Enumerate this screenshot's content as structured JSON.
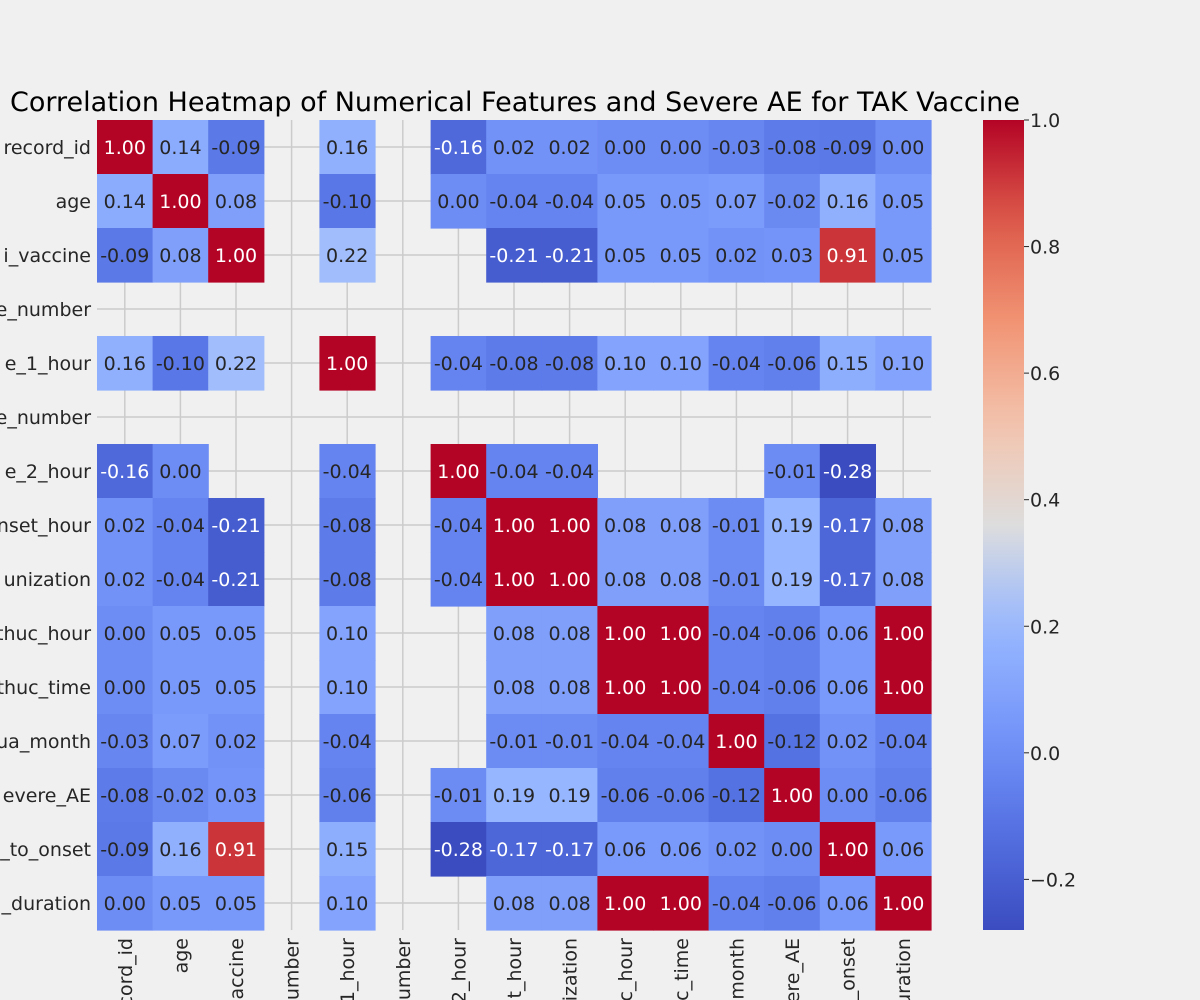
{
  "chart_data": {
    "type": "heatmap",
    "title": "Correlation Heatmap of Numerical Features and Severe AE for TAK Vaccine",
    "row_labels": [
      "record_id",
      "age",
      "i_vaccine",
      "e_number",
      "e_1_hour",
      "e_number",
      "e_2_hour",
      "nset_hour",
      "unization",
      "thuc_hour",
      "thuc_time",
      "ua_month",
      "evere_AE",
      "_to_onset",
      "_duration"
    ],
    "col_labels": [
      "cord_id",
      "age",
      "accine",
      "umber",
      "1_hour",
      "umber",
      "2_hour",
      "t_hour",
      "ization",
      "c_hour",
      "c_time",
      "month",
      "ere_AE",
      "_onset",
      "uration"
    ],
    "values": [
      [
        1.0,
        0.14,
        -0.09,
        null,
        0.16,
        null,
        -0.16,
        0.02,
        0.02,
        -0.0,
        -0.0,
        -0.03,
        -0.08,
        -0.09,
        -0.0
      ],
      [
        0.14,
        1.0,
        0.08,
        null,
        -0.1,
        null,
        0.0,
        -0.04,
        -0.04,
        0.05,
        0.05,
        0.07,
        -0.02,
        0.16,
        0.05
      ],
      [
        -0.09,
        0.08,
        1.0,
        null,
        0.22,
        null,
        null,
        -0.21,
        -0.21,
        0.05,
        0.05,
        0.02,
        0.03,
        0.91,
        0.05
      ],
      [
        null,
        null,
        null,
        null,
        null,
        null,
        null,
        null,
        null,
        null,
        null,
        null,
        null,
        null,
        null
      ],
      [
        0.16,
        -0.1,
        0.22,
        null,
        1.0,
        null,
        -0.04,
        -0.08,
        -0.08,
        0.1,
        0.1,
        -0.04,
        -0.06,
        0.15,
        0.1
      ],
      [
        null,
        null,
        null,
        null,
        null,
        null,
        null,
        null,
        null,
        null,
        null,
        null,
        null,
        null,
        null
      ],
      [
        -0.16,
        0.0,
        null,
        null,
        -0.04,
        null,
        1.0,
        -0.04,
        -0.04,
        null,
        null,
        null,
        -0.01,
        -0.28,
        null
      ],
      [
        0.02,
        -0.04,
        -0.21,
        null,
        -0.08,
        null,
        -0.04,
        1.0,
        1.0,
        0.08,
        0.08,
        -0.01,
        0.19,
        -0.17,
        0.08
      ],
      [
        0.02,
        -0.04,
        -0.21,
        null,
        -0.08,
        null,
        -0.04,
        1.0,
        1.0,
        0.08,
        0.08,
        -0.01,
        0.19,
        -0.17,
        0.08
      ],
      [
        -0.0,
        0.05,
        0.05,
        null,
        0.1,
        null,
        null,
        0.08,
        0.08,
        1.0,
        1.0,
        -0.04,
        -0.06,
        0.06,
        1.0
      ],
      [
        -0.0,
        0.05,
        0.05,
        null,
        0.1,
        null,
        null,
        0.08,
        0.08,
        1.0,
        1.0,
        -0.04,
        -0.06,
        0.06,
        1.0
      ],
      [
        -0.03,
        0.07,
        0.02,
        null,
        -0.04,
        null,
        null,
        -0.01,
        -0.01,
        -0.04,
        -0.04,
        1.0,
        -0.12,
        0.02,
        -0.04
      ],
      [
        -0.08,
        -0.02,
        0.03,
        null,
        -0.06,
        null,
        -0.01,
        0.19,
        0.19,
        -0.06,
        -0.06,
        -0.12,
        1.0,
        -0.0,
        -0.06
      ],
      [
        -0.09,
        0.16,
        0.91,
        null,
        0.15,
        null,
        -0.28,
        -0.17,
        -0.17,
        0.06,
        0.06,
        0.02,
        -0.0,
        1.0,
        0.06
      ],
      [
        -0.0,
        0.05,
        0.05,
        null,
        0.1,
        null,
        null,
        0.08,
        0.08,
        1.0,
        1.0,
        -0.04,
        -0.06,
        0.06,
        1.0
      ]
    ],
    "colormap": "coolwarm",
    "vmin": -0.28,
    "vmax": 1.0,
    "colorbar_ticks": [
      "1.0",
      "0.8",
      "0.6",
      "0.4",
      "0.2",
      "0.0",
      "−0.2"
    ],
    "colorbar_tick_values": [
      1.0,
      0.8,
      0.6,
      0.4,
      0.2,
      0.0,
      -0.2
    ],
    "grid": true,
    "background_color": "#f0f0f0",
    "grid_color": "#cbcbcb"
  }
}
